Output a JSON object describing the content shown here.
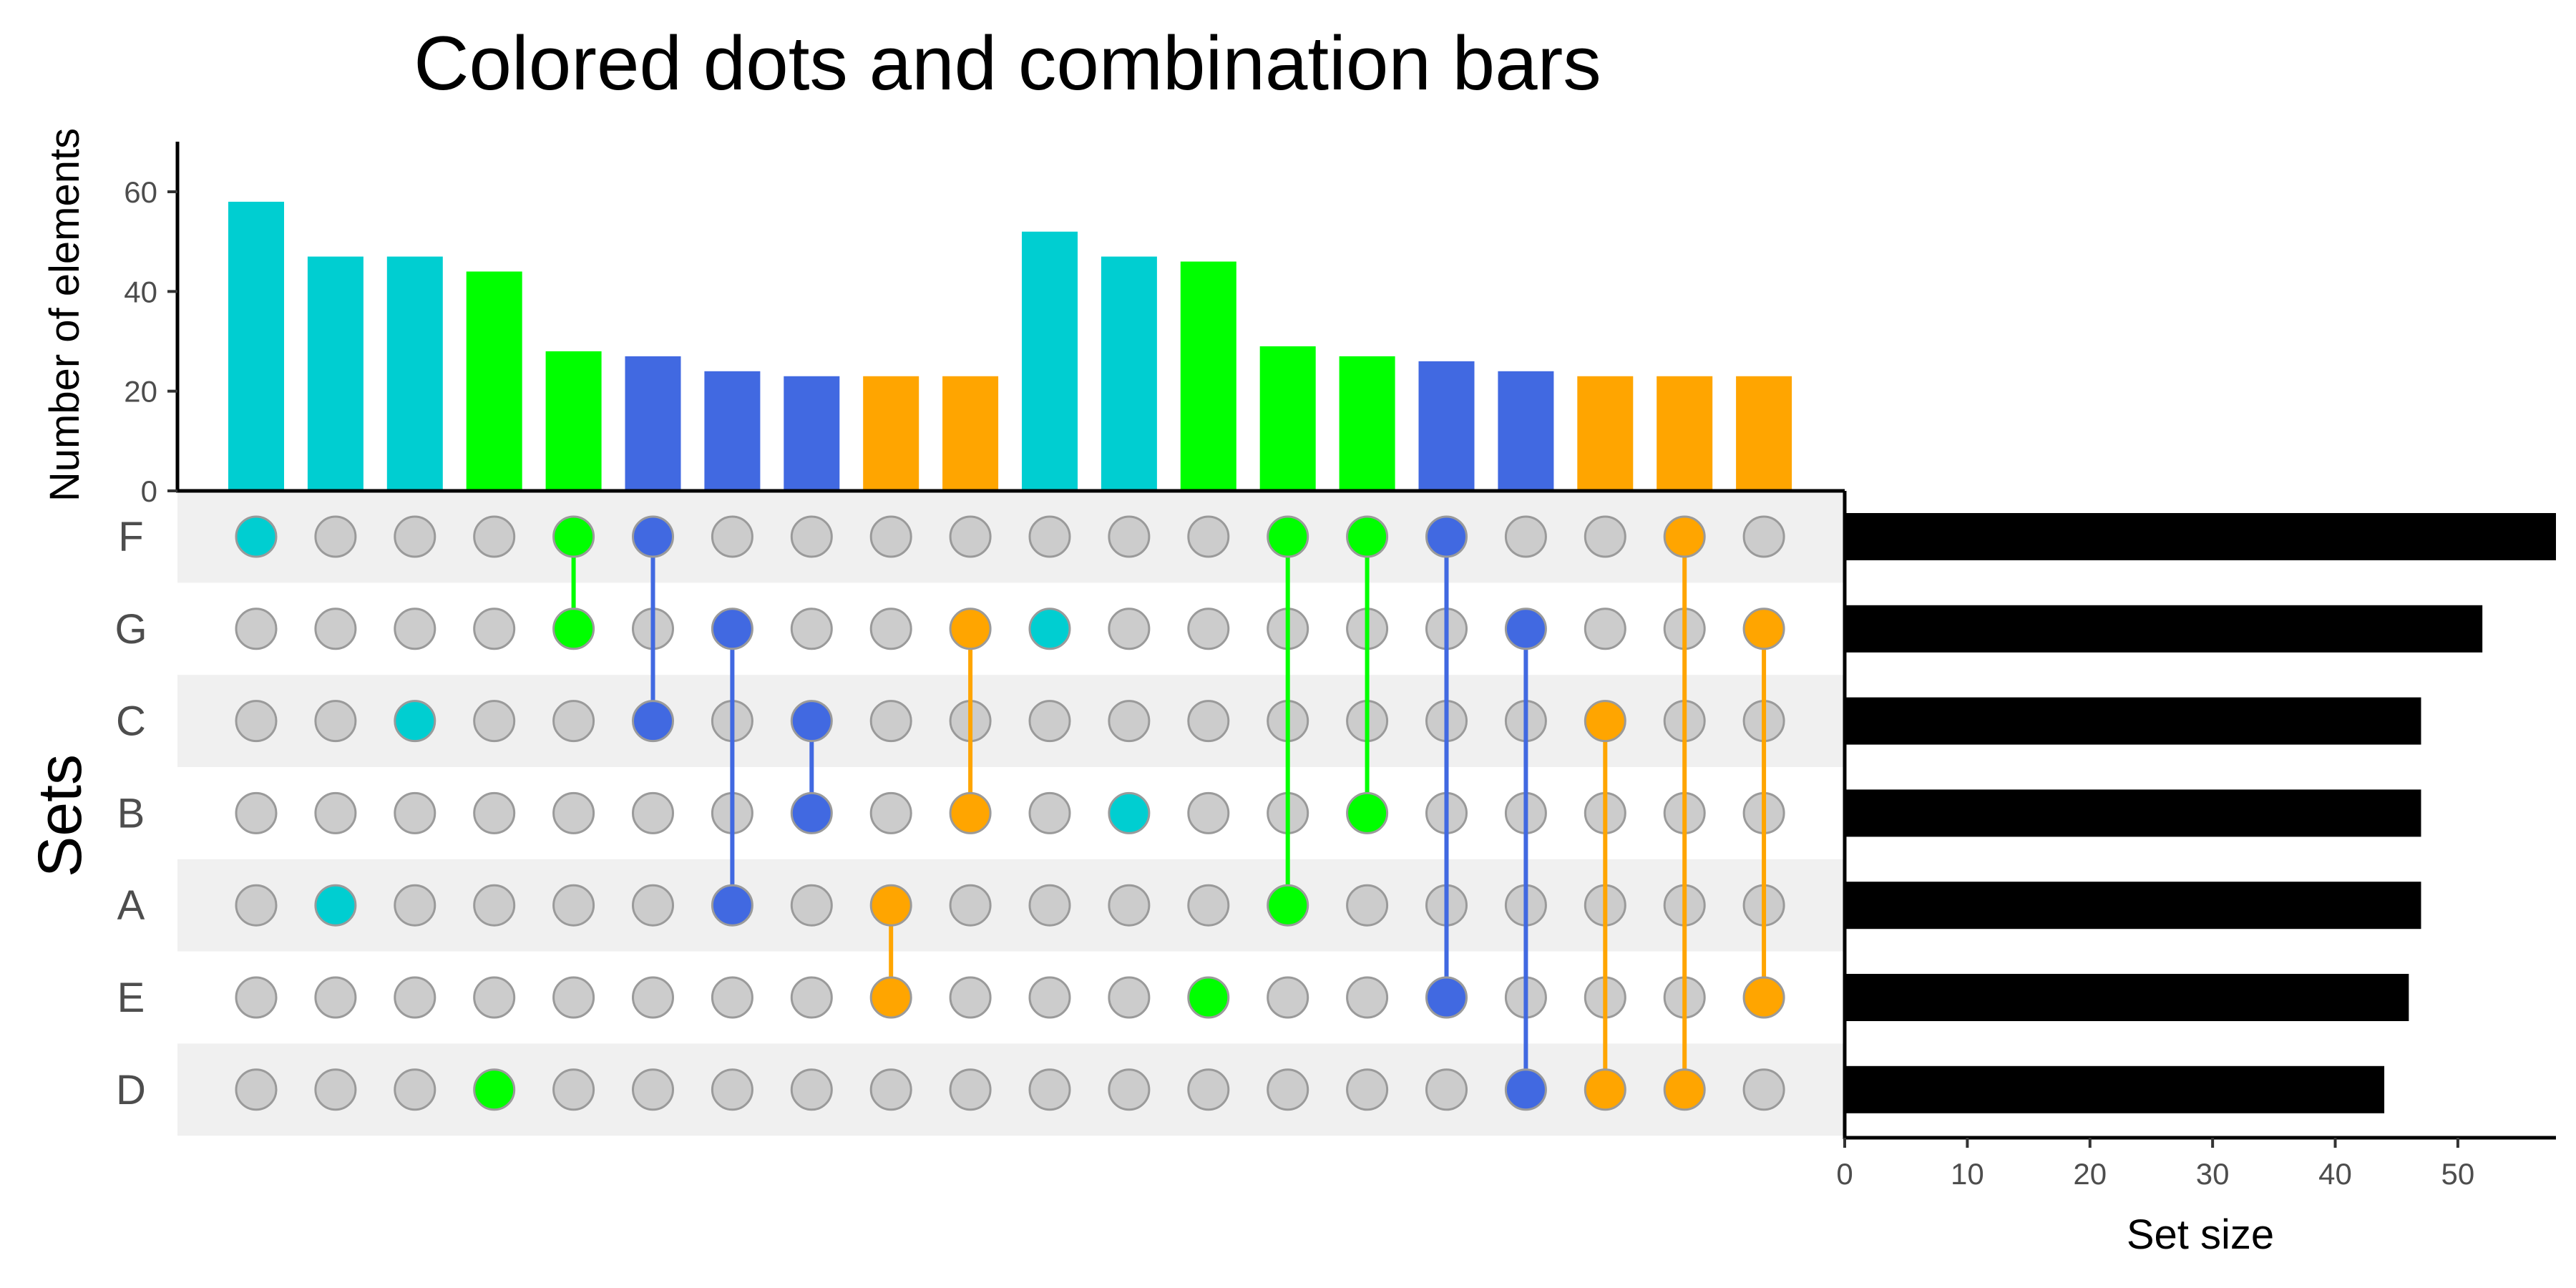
{
  "chart_data": {
    "type": "upset",
    "title": "Colored dots and combination bars",
    "sets": [
      "F",
      "G",
      "C",
      "B",
      "A",
      "E",
      "D"
    ],
    "sets_axis_label": "Sets",
    "intersections": {
      "ylabel": "Number of elements",
      "ylim": [
        0,
        70
      ],
      "yticks": [
        0,
        20,
        40,
        60
      ],
      "bars": [
        {
          "members": [
            "F"
          ],
          "value": 58,
          "color": "#00CED1"
        },
        {
          "members": [
            "A"
          ],
          "value": 47,
          "color": "#00CED1"
        },
        {
          "members": [
            "C"
          ],
          "value": 47,
          "color": "#00CED1"
        },
        {
          "members": [
            "D"
          ],
          "value": 44,
          "color": "#00FF00"
        },
        {
          "members": [
            "F",
            "G"
          ],
          "value": 28,
          "color": "#00FF00"
        },
        {
          "members": [
            "F",
            "C"
          ],
          "value": 27,
          "color": "#4169E1"
        },
        {
          "members": [
            "G",
            "A"
          ],
          "value": 24,
          "color": "#4169E1"
        },
        {
          "members": [
            "C",
            "B"
          ],
          "value": 23,
          "color": "#4169E1"
        },
        {
          "members": [
            "A",
            "E"
          ],
          "value": 23,
          "color": "#FFA500"
        },
        {
          "members": [
            "G",
            "B"
          ],
          "value": 23,
          "color": "#FFA500"
        },
        {
          "members": [
            "G"
          ],
          "value": 52,
          "color": "#00CED1"
        },
        {
          "members": [
            "B"
          ],
          "value": 47,
          "color": "#00CED1"
        },
        {
          "members": [
            "E"
          ],
          "value": 46,
          "color": "#00FF00"
        },
        {
          "members": [
            "F",
            "A"
          ],
          "value": 29,
          "color": "#00FF00"
        },
        {
          "members": [
            "F",
            "B"
          ],
          "value": 27,
          "color": "#00FF00"
        },
        {
          "members": [
            "F",
            "E"
          ],
          "value": 26,
          "color": "#4169E1"
        },
        {
          "members": [
            "G",
            "D"
          ],
          "value": 24,
          "color": "#4169E1"
        },
        {
          "members": [
            "C",
            "D"
          ],
          "value": 23,
          "color": "#FFA500"
        },
        {
          "members": [
            "F",
            "D"
          ],
          "value": 23,
          "color": "#FFA500"
        },
        {
          "members": [
            "G",
            "E"
          ],
          "value": 23,
          "color": "#FFA500"
        }
      ]
    },
    "set_sizes": {
      "xlabel": "Set size",
      "xlim": [
        0,
        58
      ],
      "xticks": [
        0,
        10,
        20,
        30,
        40,
        50
      ],
      "values": [
        58,
        52,
        47,
        47,
        47,
        46,
        44
      ],
      "color": "#000000"
    },
    "grid": false,
    "inactive_dot_color": "#CCCCCC",
    "stripe_color": "#F0F0F0"
  }
}
